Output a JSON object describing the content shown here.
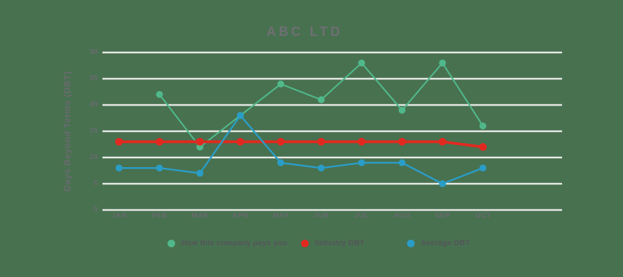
{
  "title": "ABC LTD",
  "chart_data": {
    "type": "line",
    "title": "ABC LTD",
    "ylabel": "Days Beyond Terms (DBT)",
    "xlabel": "",
    "categories": [
      "JAN",
      "FEB",
      "MAR",
      "APR",
      "MAY",
      "JUN",
      "JUL",
      "AUG",
      "SEP",
      "OCT"
    ],
    "y_ticks": [
      0,
      5,
      10,
      15,
      20,
      25,
      30
    ],
    "ylim": [
      0,
      30
    ],
    "grid": "horizontal-only",
    "legend_position": "bottom",
    "series": [
      {
        "name": "How this company pays you",
        "color": "#50B88A",
        "values": [
          null,
          22,
          12,
          18,
          24,
          21,
          28,
          19,
          28,
          16
        ]
      },
      {
        "name": "Industry DBT",
        "color": "#E1291F",
        "values": [
          13,
          13,
          13,
          13,
          13,
          13,
          13,
          13,
          13,
          12
        ]
      },
      {
        "name": "Average DBT",
        "color": "#2A9DC6",
        "values": [
          8,
          8,
          7,
          18,
          9,
          8,
          9,
          9,
          5,
          8
        ]
      }
    ],
    "colors": {
      "background": "#487150",
      "gridline": "#E9EBE6",
      "title_text": "#6F6F73",
      "axis_text": "#696A6E",
      "legend_text": "#55565A"
    }
  }
}
